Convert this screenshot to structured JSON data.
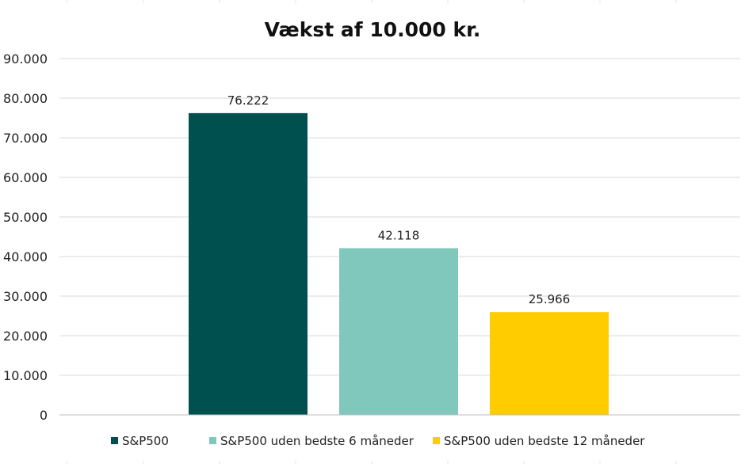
{
  "chart_data": {
    "type": "bar",
    "title": "Vækst af 10.000 kr.",
    "xlabel": "",
    "ylabel": "",
    "ylim": [
      0,
      90000
    ],
    "yticks": [
      0,
      10000,
      20000,
      30000,
      40000,
      50000,
      60000,
      70000,
      80000,
      90000
    ],
    "ytick_labels": [
      "0",
      "10.000",
      "20.000",
      "30.000",
      "40.000",
      "50.000",
      "60.000",
      "70.000",
      "80.000",
      "90.000"
    ],
    "grid": true,
    "legend_position": "bottom",
    "categories": [
      "S&P500",
      "S&P500 uden bedste 6 måneder",
      "S&P500 uden bedste 12 måneder"
    ],
    "values": [
      76222,
      42118,
      25966
    ],
    "data_labels": [
      "76.222",
      "42.118",
      "25.966"
    ],
    "colors": [
      "#00504f",
      "#80c8bc",
      "#ffcc00"
    ]
  }
}
